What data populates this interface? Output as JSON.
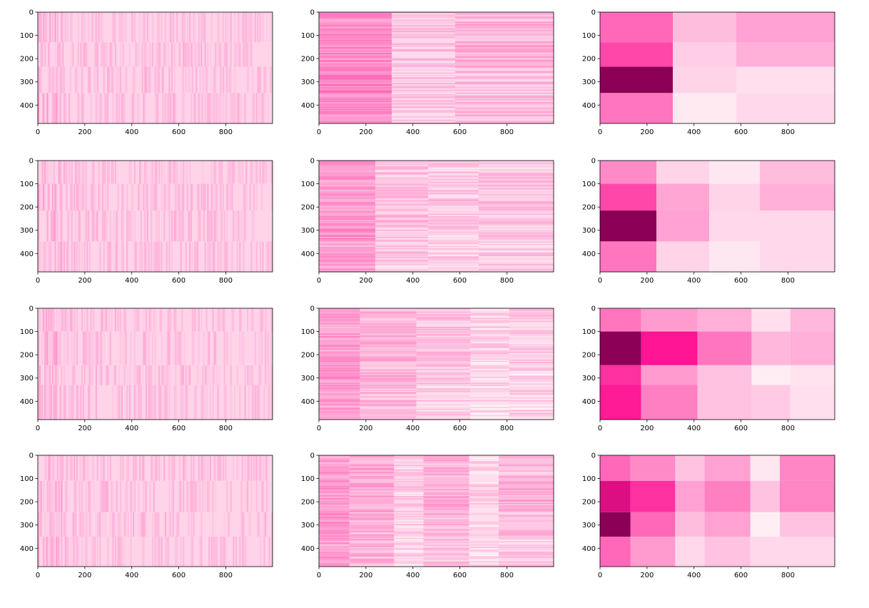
{
  "figure": {
    "rows": 4,
    "cols": 3
  },
  "colors": {
    "heat_low": "#fff5f7",
    "heat_high": "#8b0056",
    "axis": "#000000"
  },
  "chart_data": [
    {
      "type": "heatmap",
      "panel": "r1c1",
      "pattern": "fine",
      "xlim": [
        0,
        999
      ],
      "ylim": [
        479,
        0
      ],
      "xticks": [
        0,
        200,
        400,
        600,
        800
      ],
      "yticks": [
        0,
        100,
        200,
        300,
        400
      ],
      "row_bounds": [
        0,
        130,
        235,
        348,
        479
      ],
      "col_bounds": [
        0,
        999
      ],
      "values": [
        [
          0.12
        ],
        [
          0.12
        ],
        [
          0.12
        ],
        [
          0.12
        ]
      ],
      "grid": false,
      "legend": "none"
    },
    {
      "type": "heatmap",
      "panel": "r1c2",
      "pattern": "rows",
      "xlim": [
        0,
        999
      ],
      "ylim": [
        479,
        0
      ],
      "xticks": [
        0,
        200,
        400,
        600,
        800
      ],
      "yticks": [
        0,
        100,
        200,
        300,
        400
      ],
      "row_bounds": [
        0,
        130,
        235,
        348,
        479
      ],
      "col_bounds": [
        0,
        310,
        580,
        999
      ],
      "values": [
        [
          0.35,
          0.15,
          0.2
        ],
        [
          0.35,
          0.15,
          0.22
        ],
        [
          0.38,
          0.14,
          0.18
        ],
        [
          0.32,
          0.13,
          0.18
        ]
      ],
      "grid": false,
      "legend": "none"
    },
    {
      "type": "heatmap",
      "panel": "r1c3",
      "pattern": "blocks",
      "xlim": [
        0,
        999
      ],
      "ylim": [
        479,
        0
      ],
      "xticks": [
        0,
        200,
        400,
        600,
        800
      ],
      "yticks": [
        0,
        100,
        200,
        300,
        400
      ],
      "row_bounds": [
        0,
        130,
        235,
        348,
        479
      ],
      "col_bounds": [
        0,
        310,
        580,
        999
      ],
      "values": [
        [
          0.5,
          0.2,
          0.3
        ],
        [
          0.62,
          0.14,
          0.25
        ],
        [
          1.0,
          0.12,
          0.08
        ],
        [
          0.45,
          0.04,
          0.1
        ]
      ],
      "grid": false,
      "legend": "none"
    },
    {
      "type": "heatmap",
      "panel": "r2c1",
      "pattern": "fine",
      "xlim": [
        0,
        999
      ],
      "ylim": [
        479,
        0
      ],
      "xticks": [
        0,
        200,
        400,
        600,
        800
      ],
      "yticks": [
        0,
        100,
        200,
        300,
        400
      ],
      "row_bounds": [
        0,
        100,
        215,
        348,
        479
      ],
      "col_bounds": [
        0,
        999
      ],
      "values": [
        [
          0.12
        ],
        [
          0.12
        ],
        [
          0.12
        ],
        [
          0.12
        ]
      ],
      "grid": false,
      "legend": "none"
    },
    {
      "type": "heatmap",
      "panel": "r2c2",
      "pattern": "rows",
      "xlim": [
        0,
        999
      ],
      "ylim": [
        479,
        0
      ],
      "xticks": [
        0,
        200,
        400,
        600,
        800
      ],
      "yticks": [
        0,
        100,
        200,
        300,
        400
      ],
      "row_bounds": [
        0,
        100,
        215,
        348,
        479
      ],
      "col_bounds": [
        0,
        240,
        465,
        680,
        999
      ],
      "values": [
        [
          0.3,
          0.15,
          0.12,
          0.14
        ],
        [
          0.3,
          0.16,
          0.14,
          0.15
        ],
        [
          0.32,
          0.17,
          0.12,
          0.13
        ],
        [
          0.28,
          0.14,
          0.1,
          0.12
        ]
      ],
      "grid": false,
      "legend": "none"
    },
    {
      "type": "heatmap",
      "panel": "r2c3",
      "pattern": "blocks",
      "xlim": [
        0,
        999
      ],
      "ylim": [
        479,
        0
      ],
      "xticks": [
        0,
        200,
        400,
        600,
        800
      ],
      "yticks": [
        0,
        100,
        200,
        300,
        400
      ],
      "row_bounds": [
        0,
        100,
        215,
        348,
        479
      ],
      "col_bounds": [
        0,
        240,
        465,
        680,
        999
      ],
      "values": [
        [
          0.38,
          0.12,
          0.05,
          0.2
        ],
        [
          0.62,
          0.28,
          0.12,
          0.25
        ],
        [
          1.0,
          0.3,
          0.1,
          0.1
        ],
        [
          0.45,
          0.12,
          0.05,
          0.1
        ]
      ],
      "grid": false,
      "legend": "none"
    },
    {
      "type": "heatmap",
      "panel": "r3c1",
      "pattern": "fine",
      "xlim": [
        0,
        999
      ],
      "ylim": [
        479,
        0
      ],
      "xticks": [
        0,
        200,
        400,
        600,
        800
      ],
      "yticks": [
        0,
        100,
        200,
        300,
        400
      ],
      "row_bounds": [
        0,
        100,
        245,
        330,
        479
      ],
      "col_bounds": [
        0,
        999
      ],
      "values": [
        [
          0.12
        ],
        [
          0.12
        ],
        [
          0.12
        ],
        [
          0.12
        ]
      ],
      "grid": false,
      "legend": "none"
    },
    {
      "type": "heatmap",
      "panel": "r3c2",
      "pattern": "rows",
      "xlim": [
        0,
        999
      ],
      "ylim": [
        479,
        0
      ],
      "xticks": [
        0,
        200,
        400,
        600,
        800
      ],
      "yticks": [
        0,
        100,
        200,
        300,
        400
      ],
      "row_bounds": [
        0,
        100,
        245,
        330,
        479
      ],
      "col_bounds": [
        0,
        175,
        415,
        645,
        810,
        999
      ],
      "values": [
        [
          0.28,
          0.2,
          0.16,
          0.1,
          0.12
        ],
        [
          0.3,
          0.22,
          0.16,
          0.1,
          0.13
        ],
        [
          0.32,
          0.2,
          0.14,
          0.08,
          0.1
        ],
        [
          0.28,
          0.18,
          0.12,
          0.08,
          0.1
        ]
      ],
      "grid": false,
      "legend": "none"
    },
    {
      "type": "heatmap",
      "panel": "r3c3",
      "pattern": "blocks",
      "xlim": [
        0,
        999
      ],
      "ylim": [
        479,
        0
      ],
      "xticks": [
        0,
        200,
        400,
        600,
        800
      ],
      "yticks": [
        0,
        100,
        200,
        300,
        400
      ],
      "row_bounds": [
        0,
        100,
        245,
        330,
        479
      ],
      "col_bounds": [
        0,
        175,
        415,
        645,
        810,
        999
      ],
      "values": [
        [
          0.45,
          0.32,
          0.25,
          0.08,
          0.22
        ],
        [
          1.0,
          0.8,
          0.45,
          0.22,
          0.25
        ],
        [
          0.7,
          0.32,
          0.18,
          0.03,
          0.06
        ],
        [
          0.78,
          0.42,
          0.18,
          0.15,
          0.08
        ]
      ],
      "grid": false,
      "legend": "none"
    },
    {
      "type": "heatmap",
      "panel": "r4c1",
      "pattern": "fine",
      "xlim": [
        0,
        999
      ],
      "ylim": [
        479,
        0
      ],
      "xticks": [
        0,
        200,
        400,
        600,
        800
      ],
      "yticks": [
        0,
        100,
        200,
        300,
        400
      ],
      "row_bounds": [
        0,
        110,
        245,
        350,
        479
      ],
      "col_bounds": [
        0,
        999
      ],
      "values": [
        [
          0.12
        ],
        [
          0.12
        ],
        [
          0.12
        ],
        [
          0.12
        ]
      ],
      "grid": false,
      "legend": "none"
    },
    {
      "type": "heatmap",
      "panel": "r4c2",
      "pattern": "rows",
      "xlim": [
        0,
        999
      ],
      "ylim": [
        479,
        0
      ],
      "xticks": [
        0,
        200,
        400,
        600,
        800
      ],
      "yticks": [
        0,
        100,
        200,
        300,
        400
      ],
      "row_bounds": [
        0,
        110,
        245,
        350,
        479
      ],
      "col_bounds": [
        0,
        130,
        320,
        445,
        640,
        765,
        999
      ],
      "values": [
        [
          0.28,
          0.24,
          0.1,
          0.22,
          0.08,
          0.2
        ],
        [
          0.3,
          0.26,
          0.12,
          0.24,
          0.1,
          0.22
        ],
        [
          0.33,
          0.22,
          0.1,
          0.2,
          0.08,
          0.16
        ],
        [
          0.27,
          0.2,
          0.08,
          0.16,
          0.07,
          0.12
        ]
      ],
      "grid": false,
      "legend": "none"
    },
    {
      "type": "heatmap",
      "panel": "r4c3",
      "pattern": "blocks",
      "xlim": [
        0,
        999
      ],
      "ylim": [
        479,
        0
      ],
      "xticks": [
        0,
        200,
        400,
        600,
        800
      ],
      "yticks": [
        0,
        100,
        200,
        300,
        400
      ],
      "row_bounds": [
        0,
        110,
        245,
        350,
        479
      ],
      "col_bounds": [
        0,
        130,
        320,
        445,
        640,
        765,
        999
      ],
      "values": [
        [
          0.5,
          0.38,
          0.18,
          0.3,
          0.05,
          0.4
        ],
        [
          0.86,
          0.7,
          0.3,
          0.42,
          0.18,
          0.4
        ],
        [
          1.0,
          0.5,
          0.2,
          0.3,
          0.02,
          0.18
        ],
        [
          0.5,
          0.32,
          0.1,
          0.18,
          0.1,
          0.1
        ]
      ],
      "grid": false,
      "legend": "none"
    }
  ]
}
